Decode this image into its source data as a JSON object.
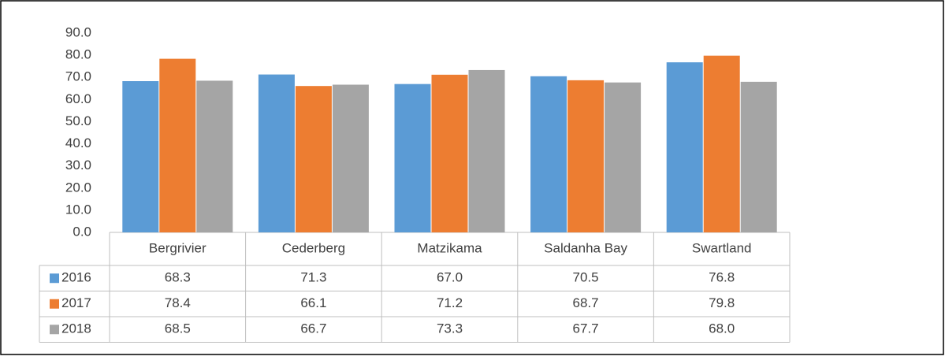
{
  "chart_data": {
    "type": "bar",
    "categories": [
      "Bergrivier",
      "Cederberg",
      "Matzikama",
      "Saldanha Bay",
      "Swartland"
    ],
    "series": [
      {
        "name": "2016",
        "color": "#5b9bd5",
        "values": [
          68.3,
          71.3,
          67.0,
          70.5,
          76.8
        ],
        "value_labels": [
          "68.3",
          "71.3",
          "67.0",
          "70.5",
          "76.8"
        ]
      },
      {
        "name": "2017",
        "color": "#ed7d31",
        "values": [
          78.4,
          66.1,
          71.2,
          68.7,
          79.8
        ],
        "value_labels": [
          "78.4",
          "66.1",
          "71.2",
          "68.7",
          "79.8"
        ]
      },
      {
        "name": "2018",
        "color": "#a5a5a5",
        "values": [
          68.5,
          66.7,
          73.3,
          67.7,
          68.0
        ],
        "value_labels": [
          "68.5",
          "66.7",
          "73.3",
          "67.7",
          "68.0"
        ]
      }
    ],
    "ylim": [
      0,
      90
    ],
    "yticks": [
      {
        "value": 0,
        "label": "0.0"
      },
      {
        "value": 10,
        "label": "10.0"
      },
      {
        "value": 20,
        "label": "20.0"
      },
      {
        "value": 30,
        "label": "30.0"
      },
      {
        "value": 40,
        "label": "40.0"
      },
      {
        "value": 50,
        "label": "50.0"
      },
      {
        "value": 60,
        "label": "60.0"
      },
      {
        "value": 70,
        "label": "70.0"
      },
      {
        "value": 80,
        "label": "80.0"
      },
      {
        "value": 90,
        "label": "90.0"
      }
    ],
    "grid": false
  }
}
